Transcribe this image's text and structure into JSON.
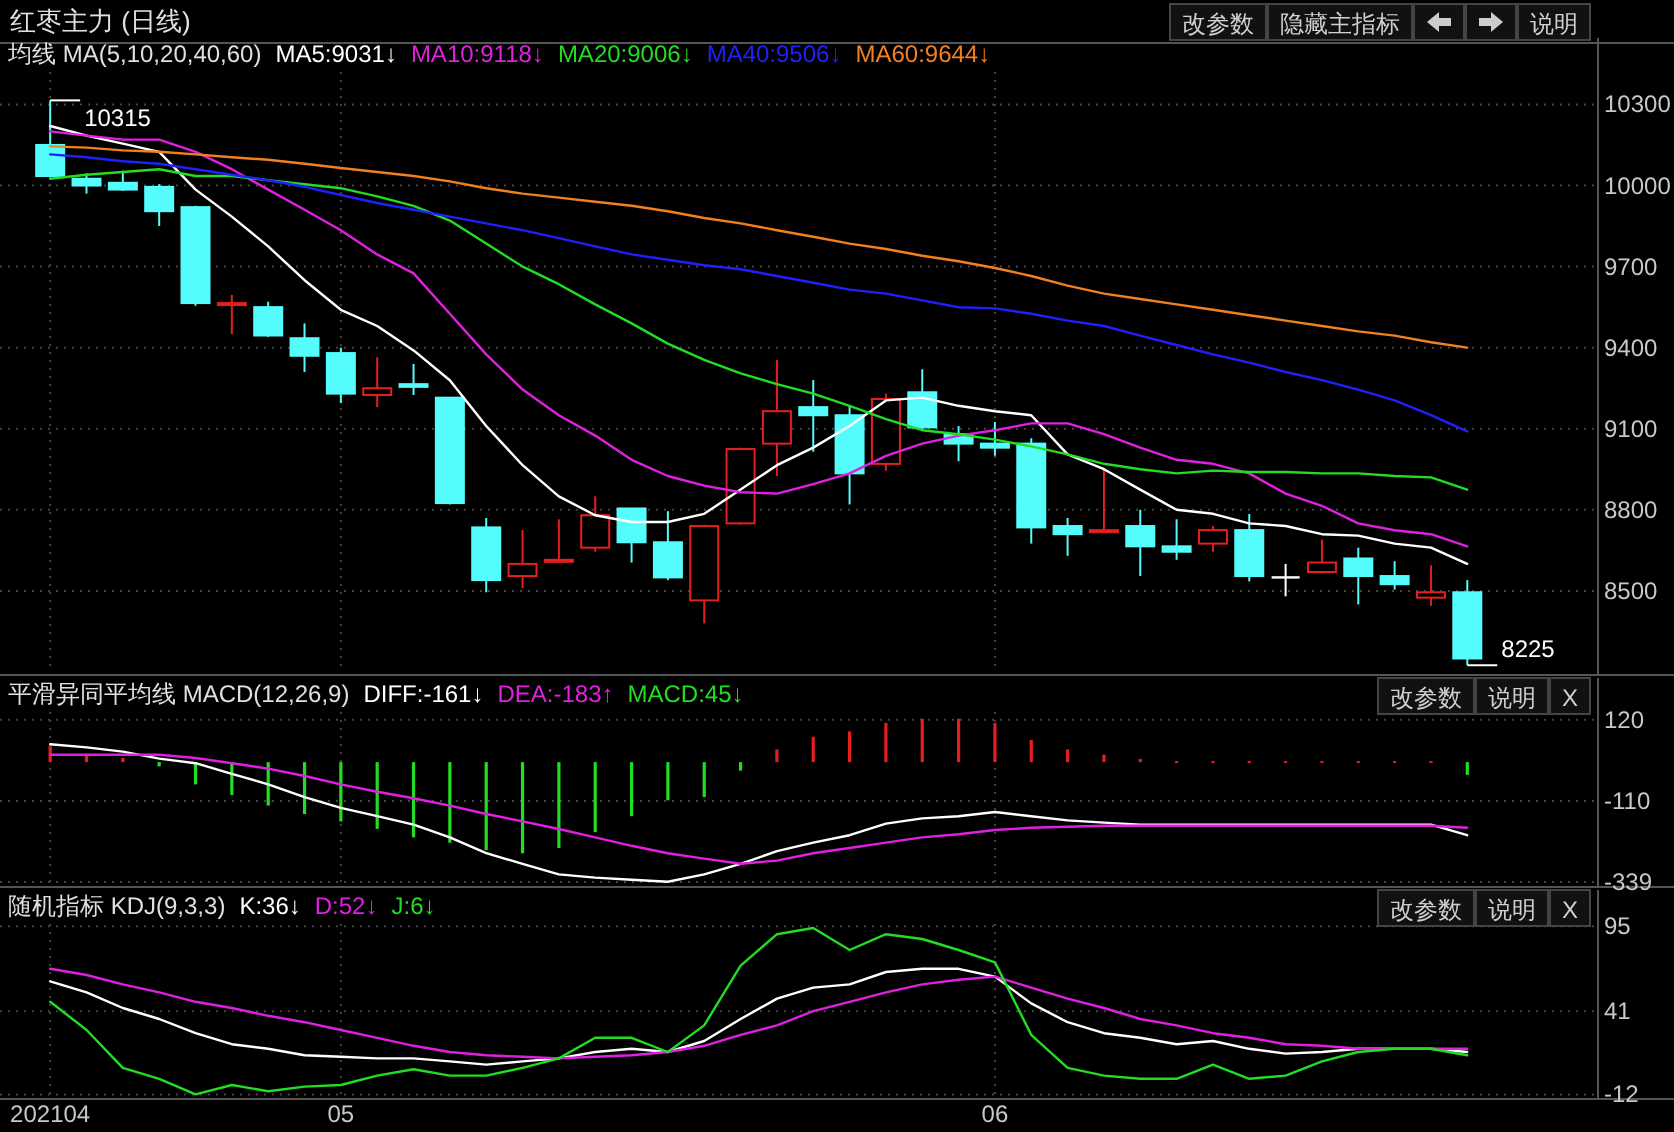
{
  "chart_data": [
    {
      "type": "candlestick",
      "title": "红枣主力 (日线)",
      "legend_title": "均线 MA(5,10,20,40,60)",
      "legend": "top left",
      "grid": true,
      "tick_labels": "y",
      "categories": [
        "202104",
        null,
        null,
        null,
        null,
        null,
        null,
        null,
        "05",
        null,
        null,
        null,
        null,
        null,
        null,
        null,
        null,
        null,
        null,
        null,
        null,
        null,
        null,
        null,
        null,
        null,
        "06",
        null,
        null,
        null,
        null,
        null,
        null,
        null,
        null,
        null,
        null,
        null,
        null,
        null
      ],
      "ylim": [
        8200,
        10420
      ],
      "yticks": [
        8500,
        8800,
        9100,
        9400,
        9700,
        10000,
        10300
      ],
      "ohlc": [
        [
          10150,
          10315,
          10030,
          10035
        ],
        [
          10025,
          10045,
          9970,
          10000
        ],
        [
          10010,
          10055,
          9980,
          9985
        ],
        [
          9995,
          10005,
          9850,
          9905
        ],
        [
          9920,
          9925,
          9555,
          9565
        ],
        [
          9560,
          9595,
          9450,
          9565
        ],
        [
          9550,
          9570,
          9440,
          9445
        ],
        [
          9435,
          9490,
          9310,
          9370
        ],
        [
          9380,
          9400,
          9195,
          9230
        ],
        [
          9225,
          9365,
          9180,
          9250
        ],
        [
          9265,
          9340,
          9225,
          9255
        ],
        [
          9215,
          9215,
          8820,
          8825
        ],
        [
          8735,
          8770,
          8495,
          8540
        ],
        [
          8555,
          8725,
          8510,
          8600
        ],
        [
          8610,
          8765,
          8610,
          8615
        ],
        [
          8660,
          8850,
          8645,
          8780
        ],
        [
          8805,
          8805,
          8605,
          8680
        ],
        [
          8680,
          8795,
          8540,
          8550
        ],
        [
          8465,
          8745,
          8380,
          8740
        ],
        [
          8750,
          9030,
          8745,
          9025
        ],
        [
          9045,
          9355,
          8925,
          9165
        ],
        [
          9180,
          9280,
          9015,
          9150
        ],
        [
          9150,
          9185,
          8820,
          8935
        ],
        [
          8970,
          9230,
          8945,
          9210
        ],
        [
          9235,
          9320,
          9095,
          9105
        ],
        [
          9080,
          9110,
          8980,
          9045
        ],
        [
          9045,
          9125,
          9000,
          9030
        ],
        [
          9045,
          9065,
          8675,
          8735
        ],
        [
          8740,
          8770,
          8630,
          8710
        ],
        [
          8720,
          8955,
          8720,
          8725
        ],
        [
          8740,
          8800,
          8555,
          8665
        ],
        [
          8665,
          8765,
          8615,
          8645
        ],
        [
          8675,
          8740,
          8645,
          8725
        ],
        [
          8725,
          8785,
          8535,
          8555
        ],
        [
          8550,
          8600,
          8480,
          8550
        ],
        [
          8570,
          8690,
          8565,
          8605
        ],
        [
          8620,
          8660,
          8450,
          8555
        ],
        [
          8555,
          8610,
          8505,
          8525
        ],
        [
          8475,
          8595,
          8445,
          8495
        ],
        [
          8495,
          8540,
          8225,
          8250
        ]
      ],
      "colors": [
        "#54fcfc",
        "#54fcfc",
        "#54fcfc",
        "#54fcfc",
        "#54fcfc",
        "#e61e1e",
        "#54fcfc",
        "#54fcfc",
        "#54fcfc",
        "#e61e1e",
        "#54fcfc",
        "#54fcfc",
        "#54fcfc",
        "#e61e1e",
        "#e61e1e",
        "#e61e1e",
        "#54fcfc",
        "#54fcfc",
        "#e61e1e",
        "#e61e1e",
        "#e61e1e",
        "#54fcfc",
        "#54fcfc",
        "#e61e1e",
        "#54fcfc",
        "#54fcfc",
        "#54fcfc",
        "#54fcfc",
        "#54fcfc",
        "#e61e1e",
        "#54fcfc",
        "#54fcfc",
        "#e61e1e",
        "#54fcfc",
        "#ffffff",
        "#e61e1e",
        "#54fcfc",
        "#54fcfc",
        "#e61e1e",
        "#54fcfc"
      ],
      "series": [
        {
          "name": "MA5:9031↓",
          "type": "line",
          "color": "#ffffff",
          "values": [
            10220,
            10185,
            10155,
            10125,
            9985,
            9885,
            9775,
            9650,
            9540,
            9480,
            9390,
            9280,
            9110,
            8965,
            8850,
            8780,
            8755,
            8755,
            8785,
            8875,
            8965,
            9030,
            9110,
            9205,
            9215,
            9185,
            9165,
            9150,
            9005,
            8950,
            8875,
            8800,
            8785,
            8750,
            8740,
            8710,
            8705,
            8675,
            8660,
            8600
          ]
        },
        {
          "name": "MA10:9118↓",
          "type": "line",
          "color": "#e020e0",
          "values": [
            10200,
            10185,
            10170,
            10170,
            10125,
            10060,
            9985,
            9910,
            9835,
            9745,
            9675,
            9525,
            9375,
            9245,
            9150,
            9075,
            8985,
            8925,
            8890,
            8865,
            8860,
            8895,
            8935,
            9000,
            9045,
            9075,
            9095,
            9120,
            9120,
            9080,
            9030,
            8985,
            8970,
            8935,
            8860,
            8815,
            8750,
            8725,
            8710,
            8665
          ]
        },
        {
          "name": "MA20:9006↓",
          "type": "line",
          "color": "#22dd22",
          "values": [
            10025,
            10040,
            10050,
            10060,
            10035,
            10035,
            10020,
            10005,
            9990,
            9960,
            9925,
            9870,
            9785,
            9700,
            9635,
            9560,
            9490,
            9415,
            9355,
            9305,
            9265,
            9230,
            9185,
            9135,
            9095,
            9080,
            9060,
            9035,
            9005,
            8970,
            8950,
            8935,
            8945,
            8940,
            8940,
            8935,
            8935,
            8925,
            8920,
            8875
          ]
        },
        {
          "name": "MA40:9506↓",
          "type": "line",
          "color": "#2020ff",
          "values": [
            10115,
            10105,
            10090,
            10080,
            10060,
            10040,
            10020,
            9995,
            9965,
            9935,
            9910,
            9885,
            9860,
            9835,
            9805,
            9775,
            9745,
            9725,
            9705,
            9690,
            9665,
            9640,
            9615,
            9600,
            9575,
            9550,
            9545,
            9525,
            9500,
            9480,
            9445,
            9410,
            9375,
            9345,
            9310,
            9280,
            9245,
            9205,
            9150,
            9090
          ]
        },
        {
          "name": "MA60:9644↓",
          "type": "line",
          "color": "#f08020",
          "values": [
            10145,
            10140,
            10130,
            10125,
            10115,
            10105,
            10095,
            10080,
            10065,
            10050,
            10035,
            10015,
            9990,
            9970,
            9955,
            9940,
            9925,
            9905,
            9880,
            9860,
            9835,
            9810,
            9785,
            9765,
            9740,
            9720,
            9695,
            9665,
            9630,
            9600,
            9580,
            9560,
            9540,
            9520,
            9500,
            9480,
            9460,
            9445,
            9420,
            9400
          ]
        }
      ],
      "annotations": [
        "改参数",
        "隐藏主指标",
        "说明",
        {
          "text": "10315",
          "x": "202104",
          "y": 10315
        },
        "8225"
      ]
    },
    {
      "type": "bar",
      "legend_title": "平滑异同平均线 MACD(12,26,9)",
      "legend": "top left",
      "grid": true,
      "tick_labels": "y",
      "categories": [
        "202104",
        null,
        null,
        null,
        null,
        null,
        null,
        null,
        "05",
        null,
        null,
        null,
        null,
        null,
        null,
        null,
        null,
        null,
        null,
        null,
        null,
        null,
        null,
        null,
        null,
        null,
        "06",
        null,
        null,
        null,
        null,
        null,
        null,
        null,
        null,
        null,
        null,
        null,
        null,
        null
      ],
      "ylim": [
        -345,
        142
      ],
      "yticks": [
        -339,
        -110,
        120
      ],
      "series": [
        {
          "name": "DIFF:-161↓",
          "type": "line",
          "color": "#ffffff",
          "values": [
            51,
            42,
            30,
            10,
            -3,
            -33,
            -63,
            -99,
            -129,
            -153,
            -177,
            -213,
            -258,
            -288,
            -318,
            -327,
            -333,
            -339,
            -318,
            -288,
            -252,
            -228,
            -207,
            -174,
            -159,
            -153,
            -141,
            -153,
            -165,
            -171,
            -177,
            -177,
            -177,
            -177,
            -177,
            -177,
            -177,
            -177,
            -177,
            -207
          ]
        },
        {
          "name": "DEA:-183↑",
          "type": "line",
          "color": "#e020e0",
          "values": [
            21,
            21,
            21,
            21,
            12,
            -3,
            -18,
            -39,
            -63,
            -84,
            -102,
            -123,
            -147,
            -168,
            -189,
            -213,
            -237,
            -258,
            -273,
            -288,
            -279,
            -258,
            -243,
            -228,
            -213,
            -204,
            -192,
            -186,
            -183,
            -180,
            -180,
            -180,
            -180,
            -180,
            -180,
            -180,
            -180,
            -180,
            -180,
            -186
          ]
        },
        {
          "name": "MACD:45↓",
          "type": "bar",
          "color": "#22dd22",
          "values": [
            45,
            24,
            12,
            -12,
            -63,
            -93,
            -123,
            -147,
            -168,
            -189,
            -213,
            -228,
            -249,
            -258,
            -243,
            -198,
            -153,
            -108,
            -99,
            -24,
            36,
            72,
            87,
            111,
            123,
            123,
            111,
            63,
            36,
            21,
            9,
            3,
            3,
            3,
            3,
            3,
            3,
            3,
            3,
            -36
          ],
          "colors": [
            "#e61e1e",
            "#e61e1e",
            "#e61e1e",
            "#22dd22",
            "#22dd22",
            "#22dd22",
            "#22dd22",
            "#22dd22",
            "#22dd22",
            "#22dd22",
            "#22dd22",
            "#22dd22",
            "#22dd22",
            "#22dd22",
            "#22dd22",
            "#22dd22",
            "#22dd22",
            "#22dd22",
            "#22dd22",
            "#22dd22",
            "#e61e1e",
            "#e61e1e",
            "#e61e1e",
            "#e61e1e",
            "#e61e1e",
            "#e61e1e",
            "#e61e1e",
            "#e61e1e",
            "#e61e1e",
            "#e61e1e",
            "#e61e1e",
            "#e61e1e",
            "#e61e1e",
            "#e61e1e",
            "#e61e1e",
            "#e61e1e",
            "#e61e1e",
            "#e61e1e",
            "#e61e1e",
            "#22dd22"
          ]
        }
      ],
      "annotations": [
        "改参数",
        "说明",
        "X"
      ]
    },
    {
      "type": "line",
      "legend_title": "随机指标 KDJ(9,3,3)",
      "legend": "top left",
      "grid": true,
      "categories": [
        "202104",
        null,
        null,
        null,
        null,
        null,
        null,
        null,
        "05",
        null,
        null,
        null,
        null,
        null,
        null,
        null,
        null,
        null,
        null,
        null,
        null,
        null,
        null,
        null,
        null,
        null,
        "06",
        null,
        null,
        null,
        null,
        null,
        null,
        null,
        null,
        null,
        null,
        null,
        null,
        null
      ],
      "ylim": [
        -13,
        96.5
      ],
      "yticks": [
        -12,
        41,
        95
      ],
      "series": [
        {
          "name": "K:36↓",
          "color": "#ffffff",
          "values": [
            60,
            53,
            43,
            36,
            27,
            20,
            17,
            13,
            12,
            11,
            11,
            9,
            7,
            9,
            11,
            15,
            17,
            15,
            22,
            36,
            49,
            56,
            58,
            66,
            68,
            68,
            63,
            46,
            34,
            27,
            24,
            20,
            22,
            17,
            14,
            15,
            17,
            17,
            17,
            15
          ]
        },
        {
          "name": "D:52↓",
          "color": "#e020e0",
          "values": [
            68,
            64,
            58,
            53,
            47,
            43,
            38,
            34,
            29,
            24,
            19,
            15,
            13,
            12,
            11,
            12,
            13,
            15,
            19,
            26,
            32,
            41,
            47,
            53,
            58,
            61,
            63,
            56,
            49,
            43,
            36,
            32,
            27,
            24,
            20,
            19,
            17,
            17,
            17,
            17
          ]
        },
        {
          "name": "J:6↓",
          "color": "#22dd22",
          "values": [
            47,
            29,
            5,
            -2,
            -12,
            -6,
            -10,
            -7,
            -6,
            0,
            4,
            0,
            0,
            5,
            11,
            24,
            24,
            15,
            32,
            70,
            90,
            94,
            80,
            90,
            87,
            80,
            72,
            26,
            5,
            0,
            -2,
            -2,
            7,
            -2,
            0,
            9,
            15,
            17,
            17,
            13
          ]
        }
      ],
      "annotations": [
        "改参数",
        "说明",
        "X"
      ]
    }
  ]
}
